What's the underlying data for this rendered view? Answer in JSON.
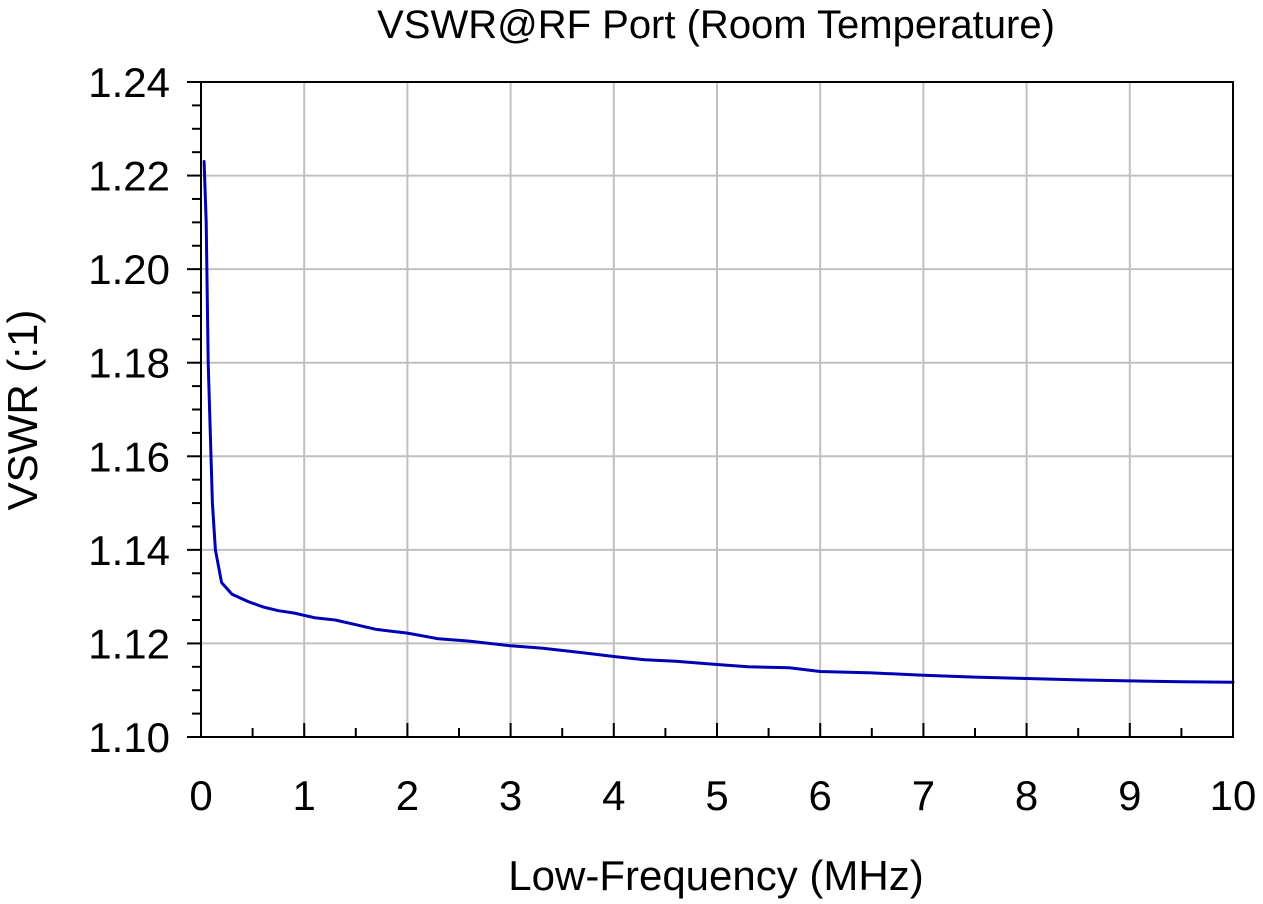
{
  "chart_data": {
    "type": "line",
    "title": "VSWR@RF Port (Room Temperature)",
    "xlabel": "Low-Frequency (MHz)",
    "ylabel": "VSWR (:1)",
    "xlim": [
      0,
      10
    ],
    "ylim": [
      1.1,
      1.24
    ],
    "x_ticks": [
      0,
      1,
      2,
      3,
      4,
      5,
      6,
      7,
      8,
      9,
      10
    ],
    "x_tick_labels": [
      "0",
      "1",
      "2",
      "3",
      "4",
      "5",
      "6",
      "7",
      "8",
      "9",
      "10"
    ],
    "y_ticks": [
      1.1,
      1.12,
      1.14,
      1.16,
      1.18,
      1.2,
      1.22,
      1.24
    ],
    "y_tick_labels": [
      "1.10",
      "1.12",
      "1.14",
      "1.16",
      "1.18",
      "1.20",
      "1.22",
      "1.24"
    ],
    "grid": true,
    "line_color": "#0000b4",
    "series": [
      {
        "x": [
          0.03,
          0.05,
          0.07,
          0.09,
          0.11,
          0.14,
          0.2,
          0.3,
          0.45,
          0.6,
          0.75,
          0.9,
          1.1,
          1.3,
          1.5,
          1.7,
          2.0,
          2.3,
          2.6,
          3.0,
          3.3,
          3.7,
          4.0,
          4.3,
          4.6,
          5.0,
          5.3,
          5.7,
          6.0,
          6.5,
          7.0,
          7.5,
          8.0,
          8.5,
          9.0,
          9.5,
          10.0
        ],
        "y": [
          1.223,
          1.21,
          1.18,
          1.165,
          1.15,
          1.14,
          1.133,
          1.1305,
          1.129,
          1.1278,
          1.127,
          1.1265,
          1.1255,
          1.125,
          1.124,
          1.123,
          1.1222,
          1.121,
          1.1205,
          1.1195,
          1.119,
          1.118,
          1.1172,
          1.1165,
          1.1162,
          1.1155,
          1.115,
          1.1148,
          1.114,
          1.1137,
          1.1132,
          1.1128,
          1.1125,
          1.1122,
          1.112,
          1.1118,
          1.1117
        ]
      }
    ]
  }
}
